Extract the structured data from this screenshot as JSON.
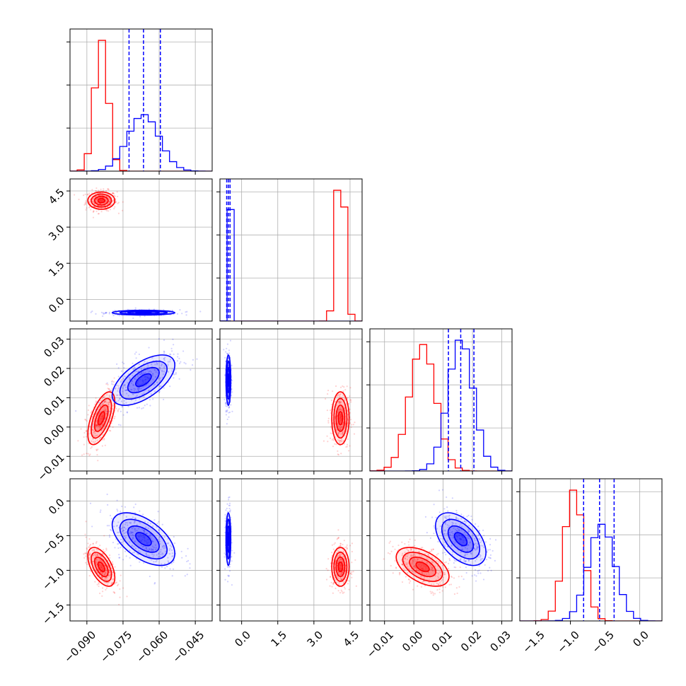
{
  "colors": {
    "red_model": "#ff0000",
    "blue_model": "#0000ff",
    "grid": "#b0b0b0"
  },
  "chart_data": {
    "type": "corner",
    "parameters": [
      {
        "range": [
          -0.097,
          -0.038
        ],
        "ticks": [
          -0.09,
          -0.075,
          -0.06,
          -0.045
        ],
        "tick_labels": [
          "−0.090",
          "−0.075",
          "−0.060",
          "−0.045"
        ]
      },
      {
        "range": [
          -0.9,
          5.0
        ],
        "ticks": [
          0,
          1.5,
          3,
          4.5
        ],
        "tick_labels": [
          "0.0",
          "1.5",
          "3.0",
          "4.5"
        ]
      },
      {
        "range": [
          -0.015,
          0.0335
        ],
        "ticks": [
          -0.01,
          0.0,
          0.01,
          0.02,
          0.03
        ],
        "tick_labels": [
          "−0.01",
          "0.00",
          "0.01",
          "0.02",
          "0.03"
        ]
      },
      {
        "range": [
          -1.73,
          0.32
        ],
        "ticks": [
          -1.5,
          -1.0,
          -0.5,
          0.0
        ],
        "tick_labels": [
          "−1.5",
          "−1.0",
          "−0.5",
          "0.0"
        ]
      }
    ],
    "series": [
      {
        "name": "",
        "color": "#ff0000",
        "mean": [
          -0.084,
          4.1,
          0.003,
          -0.95
        ],
        "sd": [
          0.0028,
          0.18,
          0.0045,
          0.14
        ]
      },
      {
        "name": "",
        "color": "#0000ff",
        "mean": [
          -0.0665,
          -0.55,
          0.016,
          -0.55
        ],
        "sd": [
          0.0065,
          0.05,
          0.0043,
          0.19
        ]
      }
    ],
    "quantiles_series": "blue",
    "quantiles": [
      [
        -0.0725,
        -0.0665,
        -0.0595
      ],
      [
        -0.62,
        -0.55,
        -0.48
      ],
      [
        0.0118,
        0.016,
        0.0205
      ],
      [
        -0.81,
        -0.58,
        -0.37
      ]
    ],
    "correlation": {
      "0-2": 0.6,
      "0-3": -0.55,
      "2-3": -0.5,
      "1-2": 0,
      "1-3": 0,
      "0-1": 0
    },
    "grid": true,
    "legend": "none"
  }
}
